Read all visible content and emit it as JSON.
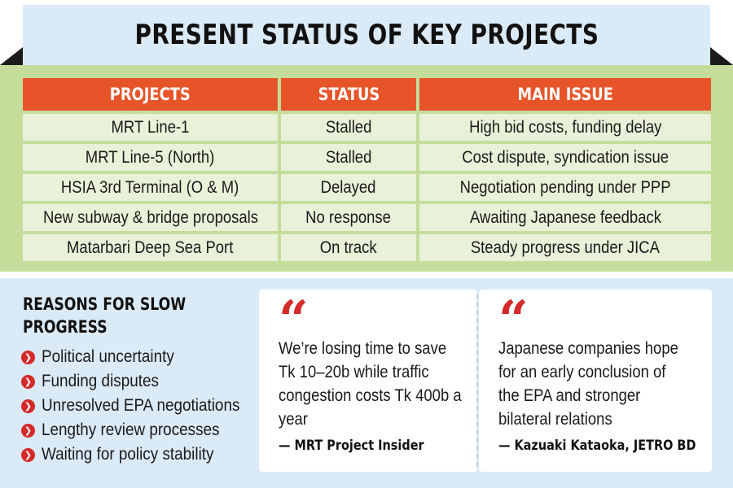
{
  "title": "PRESENT STATUS OF KEY PROJECTS",
  "table": {
    "headers": [
      "PROJECTS",
      "STATUS",
      "MAIN ISSUE"
    ],
    "rows": [
      [
        "MRT Line-1",
        "Stalled",
        "High bid costs, funding delay"
      ],
      [
        "MRT Line-5 (North)",
        "Stalled",
        "Cost dispute, syndication issue"
      ],
      [
        "HSIA 3rd Terminal (O & M)",
        "Delayed",
        "Negotiation pending under PPP"
      ],
      [
        "New subway & bridge proposals",
        "No response",
        "Awaiting Japanese feedback"
      ],
      [
        "Matarbari Deep Sea Port",
        "On track",
        "Steady progress under JICA"
      ]
    ]
  },
  "reasons": {
    "title": "REASONS FOR SLOW PROGRESS",
    "items": [
      "Political uncertainty",
      "Funding disputes",
      "Unresolved EPA negotiations",
      "Lengthy review processes",
      "Waiting for policy stability"
    ]
  },
  "quotes": [
    {
      "text": "We’re losing time to save Tk 10–20b while traffic congestion costs Tk 400b a year",
      "attribution": "— MRT Project Insider"
    },
    {
      "text": "Japanese companies hope for an early conclusion of the EPA and stronger bilateral relations",
      "attribution": "— Kazuaki Kataoka, JETRO BD"
    }
  ],
  "colors": {
    "header_orange": "#e8542a",
    "band_green": "#c4dd9b",
    "cell_green": "#e9f1d8",
    "band_blue": "#dbeaf7",
    "accent_red": "#d42a2a"
  }
}
